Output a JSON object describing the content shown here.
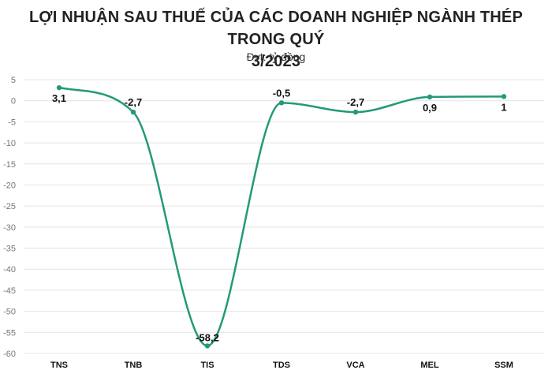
{
  "chart_data": {
    "type": "line",
    "title_line1": "LỢI NHUẬN SAU THUẾ CỦA CÁC DOANH NGHIỆP NGÀNH THÉP TRONG QUÝ",
    "title_line2": "3/2023",
    "subtitle": "Đvt: tỷ đồng",
    "categories": [
      "TNS",
      "TNB",
      "TIS",
      "TDS",
      "VCA",
      "MEL",
      "SSM"
    ],
    "values": [
      3.1,
      -2.7,
      -58.2,
      -0.5,
      -2.7,
      0.9,
      1
    ],
    "data_labels": [
      "3,1",
      "-2,7",
      "-58,2",
      "-0,5",
      "-2,7",
      "0,9",
      "1"
    ],
    "label_position": [
      "below",
      "above",
      "on",
      "above",
      "above",
      "below",
      "below"
    ],
    "yticks": [
      5,
      0,
      -5,
      -10,
      -15,
      -20,
      -25,
      -30,
      -35,
      -40,
      -45,
      -50,
      -55,
      -60
    ],
    "ylim": [
      -60,
      5
    ],
    "grid": true,
    "line_color": "#24997a"
  }
}
